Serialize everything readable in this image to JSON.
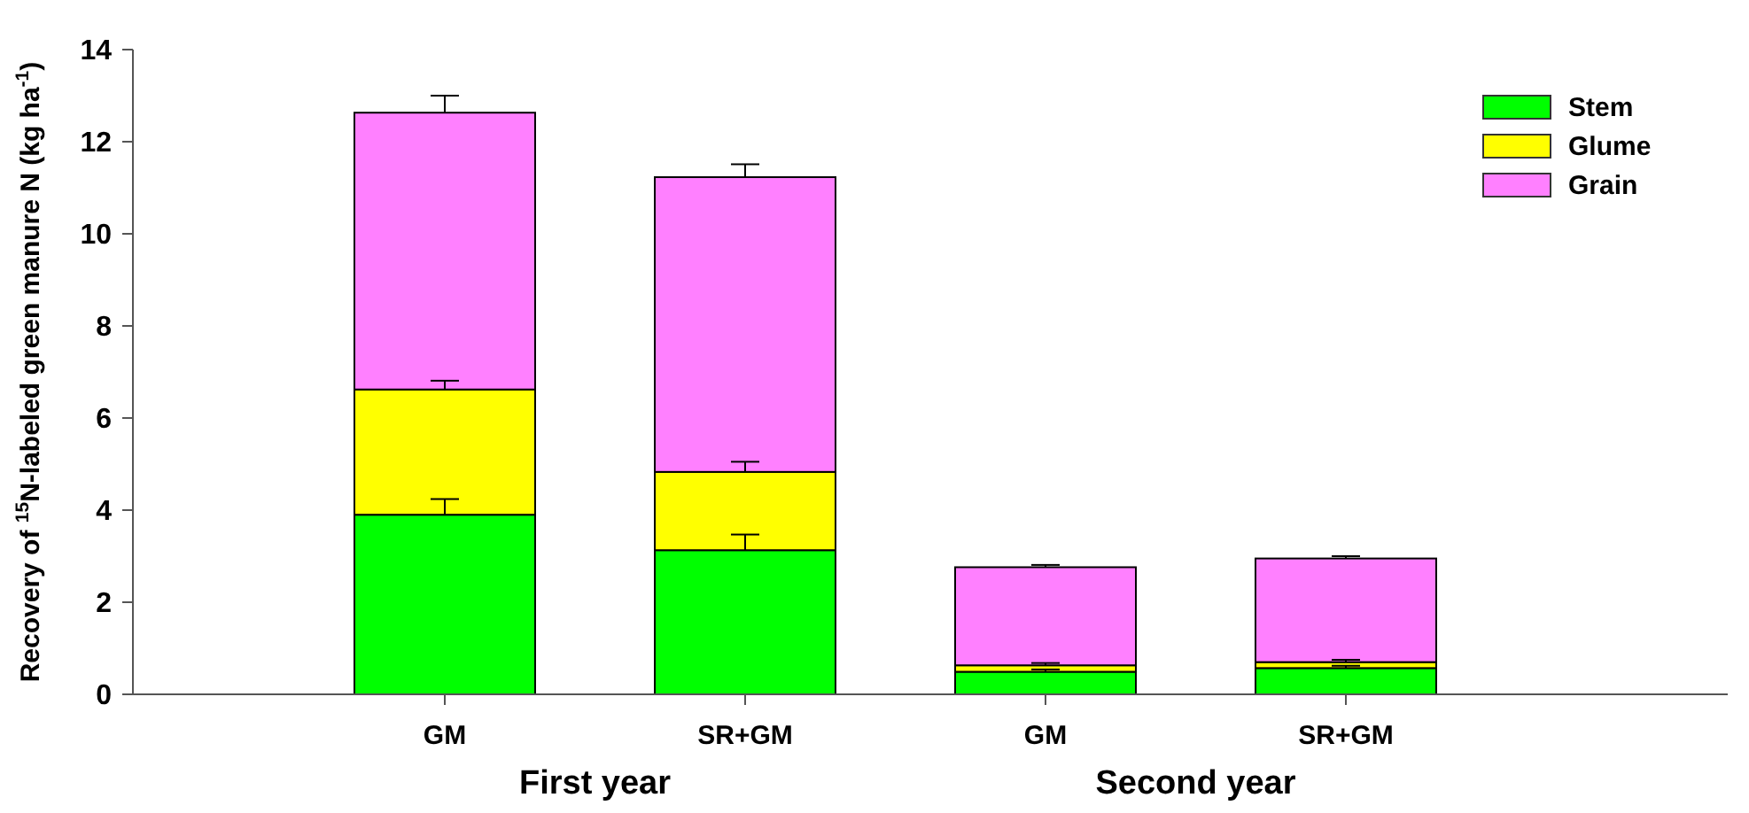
{
  "chart_data": {
    "type": "bar",
    "stacked": true,
    "categories": [
      "GM",
      "SR+GM",
      "GM",
      "SR+GM"
    ],
    "ylabel": "Recovery of $^{15}$N-labeled green manure N (kg ha$^{-1}$)",
    "ylim": [
      0,
      14
    ],
    "yticks": [
      0,
      2,
      4,
      6,
      8,
      10,
      12,
      14
    ],
    "legend": "top right",
    "grid": false,
    "annotations": [
      "First year",
      "Second year"
    ],
    "series": [
      {
        "name": "Stem",
        "color": "#00ff00",
        "values": [
          3.9,
          3.13,
          0.49,
          0.57
        ],
        "errors": [
          0.34,
          0.34,
          0.05,
          0.05
        ]
      },
      {
        "name": "Glume",
        "color": "#ffff00",
        "values": [
          2.72,
          1.7,
          0.14,
          0.13
        ],
        "errors": [
          0.19,
          0.22,
          0.05,
          0.05
        ]
      },
      {
        "name": "Grain",
        "color": "#ff80ff",
        "values": [
          6.01,
          6.4,
          2.13,
          2.25
        ],
        "errors": [
          0.37,
          0.28,
          0.05,
          0.05
        ]
      }
    ]
  }
}
